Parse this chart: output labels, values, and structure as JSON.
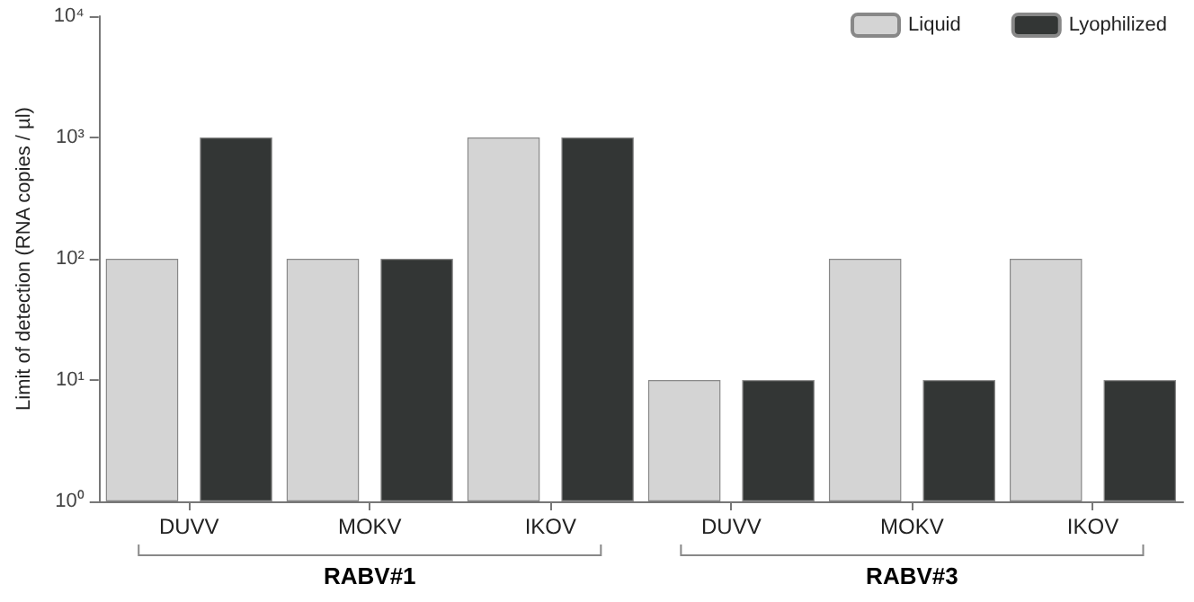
{
  "chart_data": {
    "type": "bar",
    "ylabel": "Limit of detection (RNA copies / µl)",
    "categories": [
      "DUVV",
      "MOKV",
      "IKOV",
      "DUVV",
      "MOKV",
      "IKOV"
    ],
    "series": [
      {
        "name": "Liquid",
        "color": "#d4d4d4",
        "values": [
          100,
          100,
          1000,
          10,
          100,
          100
        ]
      },
      {
        "name": "Lyophilized",
        "color": "#333635",
        "values": [
          1000,
          100,
          1000,
          10,
          10,
          10
        ]
      }
    ],
    "log": "y",
    "ylim": [
      1,
      10000
    ],
    "yticks": [
      {
        "value": 1,
        "label": "10⁰"
      },
      {
        "value": 10,
        "label": "10¹"
      },
      {
        "value": 100,
        "label": "10²"
      },
      {
        "value": 1000,
        "label": "10³"
      },
      {
        "value": 10000,
        "label": "10⁴"
      }
    ],
    "annotations": [
      "RABV#1",
      "RABV#3"
    ],
    "grid": false,
    "legend": "top right"
  }
}
